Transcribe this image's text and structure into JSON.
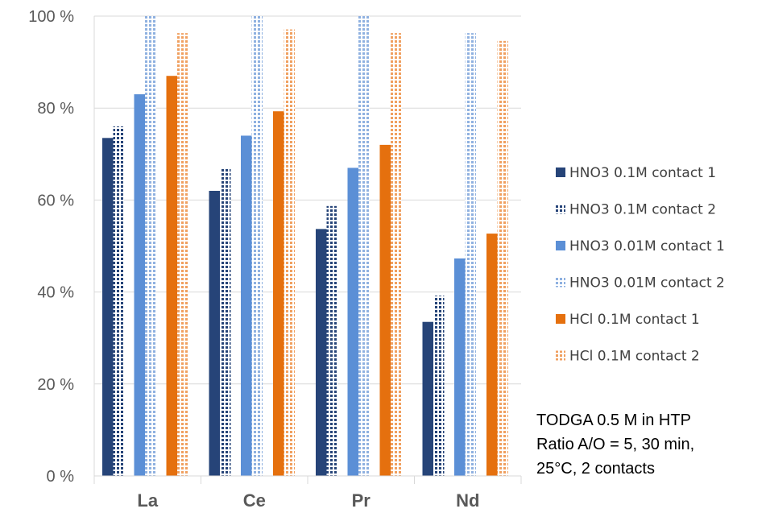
{
  "chart_data": {
    "type": "bar",
    "categories": [
      "La",
      "Ce",
      "Pr",
      "Nd"
    ],
    "yticks": [
      "0 %",
      "20 %",
      "40 %",
      "60 %",
      "80 %",
      "100 %"
    ],
    "ylim": [
      0,
      100
    ],
    "grid": true,
    "legend_position": "right",
    "series": [
      {
        "name": "HNO3 0.1M contact 1",
        "values": [
          73.5,
          62,
          53.7,
          33.5
        ],
        "color": "#264478",
        "pattern": "solid"
      },
      {
        "name": "HNO3 0.1M contact 2",
        "values": [
          76,
          67,
          58.7,
          39.2
        ],
        "color": "#264478",
        "pattern": "dotted"
      },
      {
        "name": "HNO3 0.01M contact 1",
        "values": [
          83,
          74,
          67,
          47.3
        ],
        "color": "#5B8FD6",
        "pattern": "solid"
      },
      {
        "name": "HNO3 0.01M contact 2",
        "values": [
          100,
          100,
          100,
          96.3
        ],
        "color": "#8FB1E0",
        "pattern": "dotted"
      },
      {
        "name": "HCl 0.1M contact 1",
        "values": [
          87,
          79.3,
          72,
          52.7
        ],
        "color": "#E5700E",
        "pattern": "solid"
      },
      {
        "name": "HCl 0.1M contact 2",
        "values": [
          96.3,
          97.1,
          96.3,
          94.6
        ],
        "color": "#F0A060",
        "pattern": "dotted"
      }
    ],
    "annotation": [
      "TODGA 0.5 M in HTP",
      "Ratio A/O = 5, 30 min,",
      "25°C, 2 contacts"
    ]
  }
}
